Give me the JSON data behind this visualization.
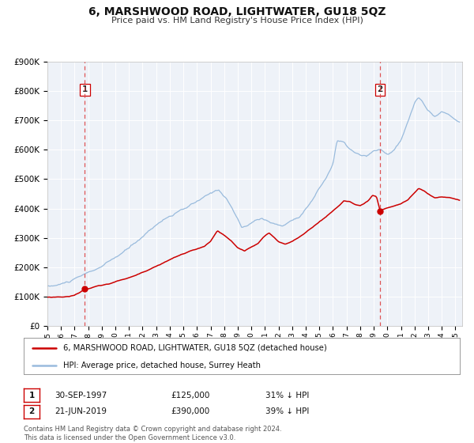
{
  "title": "6, MARSHWOOD ROAD, LIGHTWATER, GU18 5QZ",
  "subtitle": "Price paid vs. HM Land Registry's House Price Index (HPI)",
  "title_fontsize": 10,
  "subtitle_fontsize": 8.5,
  "background_color": "#ffffff",
  "plot_bg_color": "#eef2f8",
  "grid_color": "#ffffff",
  "ylim": [
    0,
    900000
  ],
  "xlim_start": 1995.0,
  "xlim_end": 2025.5,
  "ytick_labels": [
    "£0",
    "£100K",
    "£200K",
    "£300K",
    "£400K",
    "£500K",
    "£600K",
    "£700K",
    "£800K",
    "£900K"
  ],
  "ytick_values": [
    0,
    100000,
    200000,
    300000,
    400000,
    500000,
    600000,
    700000,
    800000,
    900000
  ],
  "xtick_years": [
    1995,
    1996,
    1997,
    1998,
    1999,
    2000,
    2001,
    2002,
    2003,
    2004,
    2005,
    2006,
    2007,
    2008,
    2009,
    2010,
    2011,
    2012,
    2013,
    2014,
    2015,
    2016,
    2017,
    2018,
    2019,
    2020,
    2021,
    2022,
    2023,
    2024,
    2025
  ],
  "hpi_color": "#99bbdd",
  "price_color": "#cc0000",
  "marker_color": "#cc0000",
  "vline_color": "#dd4444",
  "sale1_x": 1997.75,
  "sale1_y": 125000,
  "sale2_x": 2019.47,
  "sale2_y": 390000,
  "legend_label_price": "6, MARSHWOOD ROAD, LIGHTWATER, GU18 5QZ (detached house)",
  "legend_label_hpi": "HPI: Average price, detached house, Surrey Heath",
  "table_row1": [
    "1",
    "30-SEP-1997",
    "£125,000",
    "31% ↓ HPI"
  ],
  "table_row2": [
    "2",
    "21-JUN-2019",
    "£390,000",
    "39% ↓ HPI"
  ],
  "footnote": "Contains HM Land Registry data © Crown copyright and database right 2024.\nThis data is licensed under the Open Government Licence v3.0."
}
